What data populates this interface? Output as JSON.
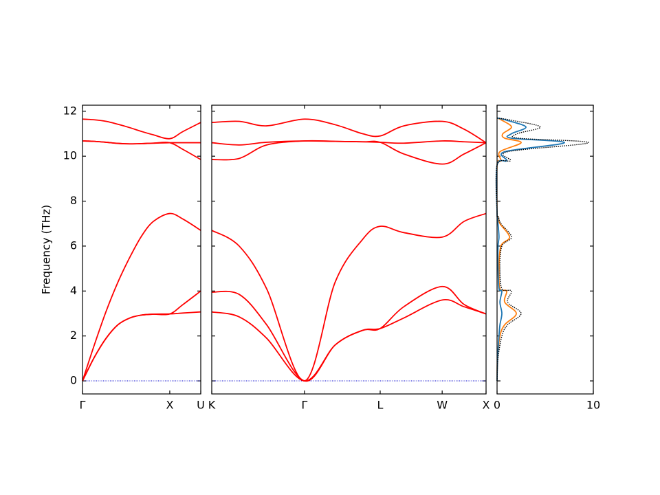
{
  "chart_data": [
    {
      "type": "line",
      "ylabel": "Frequency (THz)",
      "x": [
        0,
        0.1,
        0.2,
        0.3,
        0.4,
        0.5,
        0.6,
        0.738,
        0.85,
        1.0
      ],
      "xlim": [
        0,
        1
      ],
      "xticks": [
        {
          "value": 0,
          "label": "Γ"
        },
        {
          "value": 0.738,
          "label": "X"
        },
        {
          "value": 1,
          "label": "U"
        }
      ],
      "ylim": [
        -0.58,
        12.27
      ],
      "yticks": [
        0,
        2,
        4,
        6,
        8,
        10,
        12
      ],
      "hline": {
        "value": 0,
        "color": "#0000cc"
      },
      "series": [
        {
          "color": "#ff0000",
          "values": [
            0,
            1.05,
            1.9,
            2.5,
            2.8,
            2.93,
            2.97,
            2.98,
            3.02,
            3.07
          ]
        },
        {
          "color": "#ff0000",
          "values": [
            0,
            1.05,
            1.9,
            2.5,
            2.8,
            2.93,
            2.97,
            2.98,
            3.4,
            4.0
          ]
        },
        {
          "color": "#ff0000",
          "values": [
            0,
            1.6,
            3.1,
            4.4,
            5.5,
            6.45,
            7.1,
            7.45,
            7.2,
            6.7
          ]
        },
        {
          "color": "#ff0000",
          "values": [
            10.68,
            10.66,
            10.62,
            10.57,
            10.55,
            10.56,
            10.58,
            10.6,
            10.6,
            10.6
          ]
        },
        {
          "color": "#ff0000",
          "values": [
            10.68,
            10.66,
            10.62,
            10.57,
            10.55,
            10.56,
            10.58,
            10.6,
            10.3,
            9.85
          ]
        },
        {
          "color": "#ff0000",
          "values": [
            11.65,
            11.62,
            11.55,
            11.42,
            11.27,
            11.1,
            10.95,
            10.78,
            11.1,
            11.5
          ]
        }
      ]
    },
    {
      "type": "line",
      "x": [
        0,
        0.1,
        0.2,
        0.338,
        0.45,
        0.55,
        0.614,
        0.7,
        0.84,
        0.92,
        1.0
      ],
      "xlim": [
        0,
        1
      ],
      "xticks": [
        {
          "value": 0,
          "label": "K"
        },
        {
          "value": 0.338,
          "label": "Γ"
        },
        {
          "value": 0.614,
          "label": "L"
        },
        {
          "value": 0.84,
          "label": "W"
        },
        {
          "value": 1,
          "label": "X"
        }
      ],
      "ylim": [
        -0.58,
        12.27
      ],
      "yticks": [
        0,
        2,
        4,
        6,
        8,
        10,
        12
      ],
      "hline": {
        "value": 0,
        "color": "#0000cc"
      },
      "series": [
        {
          "color": "#ff0000",
          "values": [
            3.07,
            2.85,
            1.9,
            0,
            1.6,
            2.25,
            2.33,
            2.8,
            3.6,
            3.3,
            2.98
          ]
        },
        {
          "color": "#ff0000",
          "values": [
            3.95,
            3.85,
            2.5,
            0,
            1.6,
            2.25,
            2.33,
            3.3,
            4.2,
            3.4,
            2.98
          ]
        },
        {
          "color": "#ff0000",
          "values": [
            6.7,
            6.0,
            4.1,
            0,
            4.4,
            6.3,
            6.88,
            6.6,
            6.4,
            7.1,
            7.45
          ]
        },
        {
          "color": "#ff0000",
          "values": [
            10.6,
            10.5,
            10.62,
            10.68,
            10.66,
            10.64,
            10.62,
            10.58,
            10.68,
            10.64,
            10.6
          ]
        },
        {
          "color": "#ff0000",
          "values": [
            9.85,
            9.9,
            10.5,
            10.68,
            10.66,
            10.64,
            10.62,
            10.1,
            9.65,
            10.1,
            10.6
          ]
        },
        {
          "color": "#ff0000",
          "values": [
            11.5,
            11.55,
            11.35,
            11.65,
            11.4,
            11.0,
            10.9,
            11.35,
            11.55,
            11.2,
            10.6
          ]
        }
      ]
    },
    {
      "type": "line",
      "orientation": "horizontal",
      "y": [
        0,
        1,
        2,
        2.5,
        3.0,
        3.5,
        4.0,
        4.1,
        5,
        6,
        6.4,
        7,
        7.3,
        7.5,
        9.6,
        9.8,
        10.2,
        10.6,
        10.8,
        11.0,
        11.3,
        11.6,
        11.7
      ],
      "xlim": [
        0,
        10
      ],
      "xticks": [
        0,
        10
      ],
      "ylim": [
        -0.58,
        12.27
      ],
      "yticks": [
        0,
        2,
        4,
        6,
        8,
        10,
        12
      ],
      "series": [
        {
          "color": "#ff7f0e",
          "dash": false,
          "values": [
            0,
            0.05,
            0.3,
            0.8,
            2.0,
            0.8,
            1.0,
            0.3,
            0.2,
            0.4,
            1.3,
            0.3,
            0.1,
            0,
            0,
            0.4,
            0.3,
            2.5,
            0.8,
            0.6,
            1.5,
            0.5,
            0
          ]
        },
        {
          "color": "#1f77b4",
          "dash": false,
          "values": [
            0,
            0.05,
            0.2,
            0.3,
            0.5,
            0.3,
            0.5,
            0.2,
            0.1,
            0.1,
            0.2,
            0.1,
            0.05,
            0,
            0,
            1.0,
            0.8,
            7.0,
            1.5,
            1.5,
            3.0,
            1.0,
            0
          ]
        },
        {
          "color": "#000000",
          "dash": true,
          "values": [
            0,
            0.1,
            0.5,
            1.1,
            2.5,
            1.1,
            1.5,
            0.5,
            0.3,
            0.5,
            1.5,
            0.4,
            0.15,
            0,
            0,
            1.4,
            1.1,
            9.5,
            2.3,
            2.1,
            4.5,
            1.5,
            0
          ]
        }
      ]
    }
  ]
}
